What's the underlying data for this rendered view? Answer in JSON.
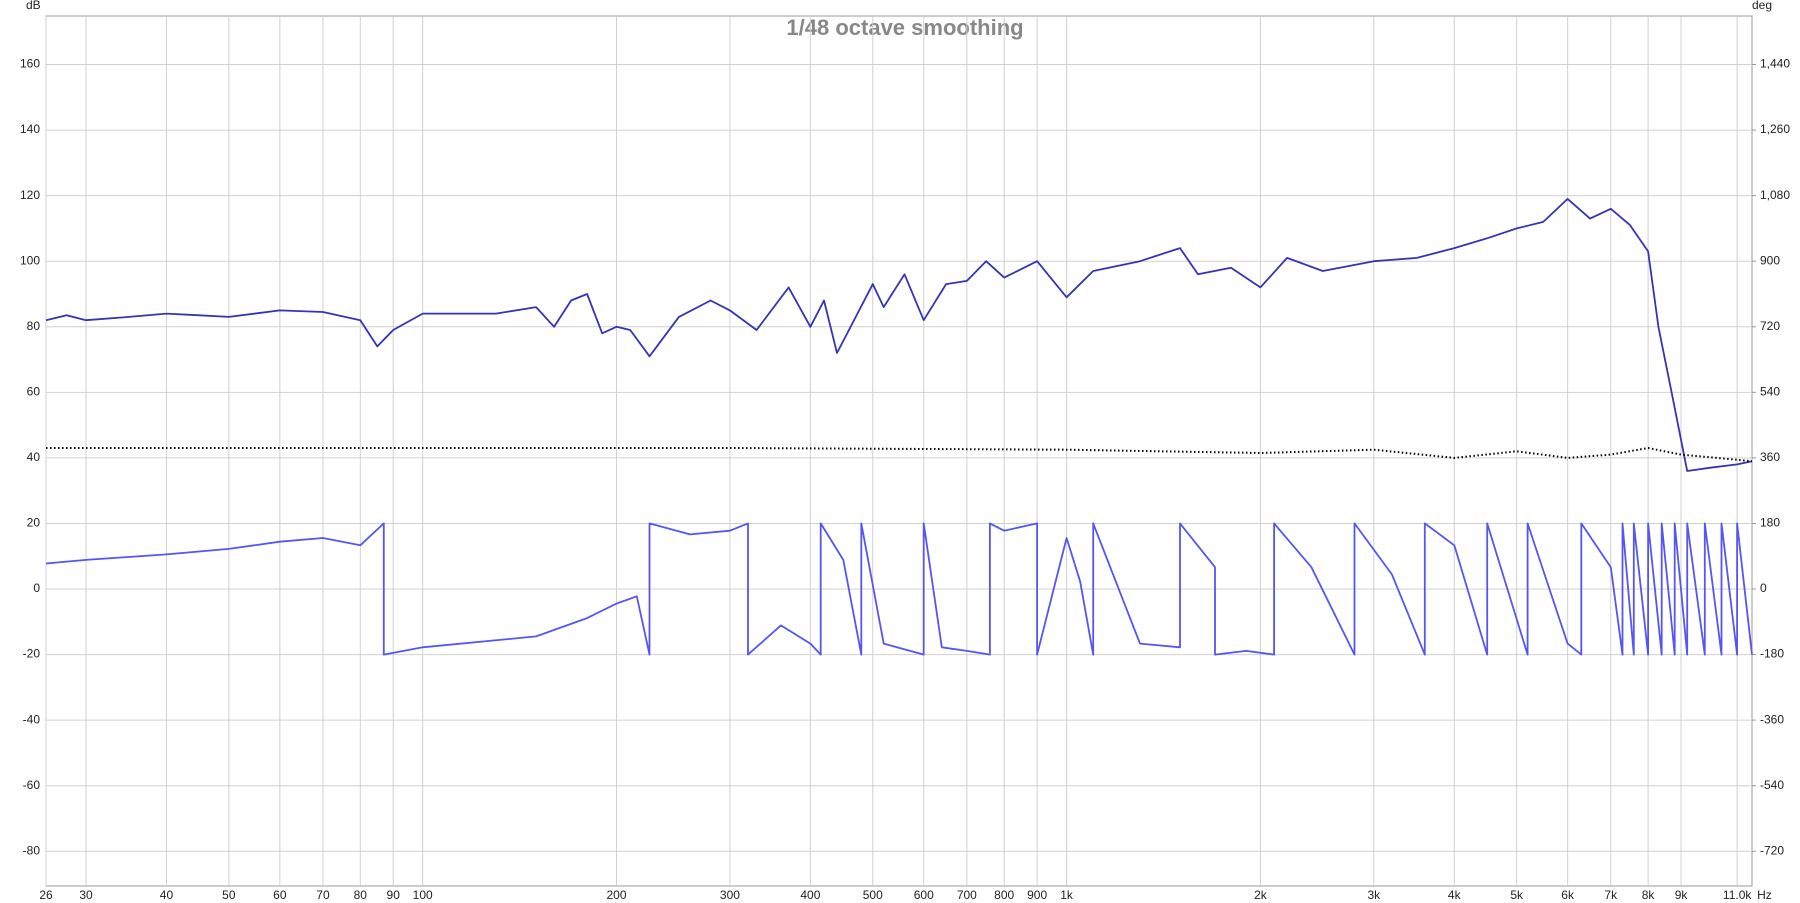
{
  "chart_data": {
    "type": "line",
    "title": "1/48 octave smoothing",
    "ylabel": "dB",
    "y2label": "deg",
    "xlabel": "Hz",
    "xscale": "log",
    "grid": true,
    "xlim": [
      26,
      11600
    ],
    "ylim": [
      -90.6,
      174.8
    ],
    "y2lim": [
      -815.4,
      1573.2
    ],
    "xticks": [
      26,
      30,
      40,
      50,
      60,
      70,
      80,
      90,
      100,
      200,
      300,
      400,
      500,
      600,
      700,
      800,
      900,
      {
        "value": 1000,
        "label": "1k"
      },
      {
        "value": 2000,
        "label": "2k"
      },
      {
        "value": 3000,
        "label": "3k"
      },
      {
        "value": 4000,
        "label": "4k"
      },
      {
        "value": 5000,
        "label": "5k"
      },
      {
        "value": 6000,
        "label": "6k"
      },
      {
        "value": 7000,
        "label": "7k"
      },
      {
        "value": 8000,
        "label": "8k"
      },
      {
        "value": 9000,
        "label": "9k"
      },
      {
        "value": 11000,
        "label": "11.0k"
      }
    ],
    "yticks": [
      -80,
      -60,
      -40,
      -20,
      0,
      20,
      40,
      60,
      80,
      100,
      120,
      140,
      160
    ],
    "y2ticks": [
      -720,
      -540,
      -360,
      -180,
      0,
      180,
      360,
      540,
      720,
      900,
      {
        "value": 1080,
        "label": "1,080"
      },
      {
        "value": 1260,
        "label": "1,260"
      },
      {
        "value": 1440,
        "label": "1,440"
      }
    ],
    "series": [
      {
        "color": "#3434b4",
        "style": "solid",
        "axis": "y",
        "x": [
          26,
          28,
          30,
          35,
          40,
          45,
          50,
          60,
          70,
          80,
          85,
          90,
          100,
          130,
          150,
          160,
          170,
          180,
          190,
          200,
          210,
          225,
          250,
          280,
          300,
          330,
          370,
          400,
          420,
          440,
          500,
          520,
          560,
          600,
          650,
          700,
          750,
          800,
          900,
          1000,
          1100,
          1300,
          1500,
          1600,
          1800,
          2000,
          2200,
          2500,
          3000,
          3500,
          4000,
          4500,
          5000,
          5500,
          6000,
          6500,
          7000,
          7500,
          8000,
          8300,
          8700,
          9200,
          10000,
          11000,
          11600
        ],
        "values": [
          82,
          83.5,
          82,
          83,
          84,
          83.5,
          83,
          85,
          84.5,
          82,
          74,
          79,
          84,
          84,
          86,
          80,
          88,
          90,
          78,
          80,
          79,
          71,
          83,
          88,
          85,
          79,
          92,
          80,
          88,
          72,
          93,
          86,
          96,
          82,
          93,
          94,
          100,
          95,
          100,
          89,
          97,
          100,
          104,
          96,
          98,
          92,
          101,
          97,
          100,
          101,
          104,
          107,
          110,
          112,
          119,
          113,
          116,
          111,
          103,
          80,
          60,
          36,
          37,
          38,
          39
        ]
      },
      {
        "color": "#000000",
        "style": "dotted",
        "axis": "y",
        "x": [
          26,
          100,
          300,
          1000,
          2000,
          3000,
          4000,
          5000,
          6000,
          7000,
          8000,
          9000,
          11600
        ],
        "values": [
          43,
          43,
          43,
          42.5,
          41.5,
          42.5,
          40,
          42,
          40,
          41,
          43,
          41,
          39
        ]
      },
      {
        "color": "#5555f5",
        "style": "solid",
        "axis": "y2",
        "x": [
          26,
          30,
          40,
          50,
          60,
          70,
          80,
          87,
          87,
          100,
          150,
          180,
          200,
          215,
          225,
          225,
          260,
          300,
          320,
          320,
          360,
          400,
          415,
          415,
          450,
          480,
          480,
          520,
          600,
          600,
          640,
          700,
          760,
          760,
          800,
          900,
          900,
          1000,
          1050,
          1100,
          1100,
          1300,
          1500,
          1500,
          1700,
          1700,
          1900,
          2100,
          2100,
          2400,
          2800,
          2800,
          3200,
          3600,
          3600,
          4000,
          4500,
          4500,
          5200,
          5200,
          6000,
          6300,
          6300,
          7000,
          7300,
          7300,
          7600,
          7600,
          8000,
          8000,
          8400,
          8400,
          8800,
          8800,
          9200,
          9200,
          9800,
          9800,
          10400,
          10400,
          11000,
          11000,
          11600
        ],
        "values": [
          70,
          80,
          95,
          110,
          130,
          140,
          120,
          180,
          -180,
          -160,
          -130,
          -80,
          -40,
          -20,
          -180,
          180,
          150,
          160,
          180,
          -180,
          -100,
          -150,
          -180,
          180,
          80,
          -180,
          180,
          -150,
          -180,
          180,
          -160,
          -170,
          -180,
          180,
          160,
          180,
          -180,
          140,
          20,
          -180,
          180,
          -150,
          -160,
          180,
          60,
          -180,
          -170,
          -180,
          180,
          60,
          -180,
          180,
          40,
          -180,
          180,
          120,
          -180,
          180,
          -180,
          180,
          -150,
          -180,
          180,
          60,
          -180,
          180,
          -180,
          180,
          -180,
          180,
          -180,
          180,
          -180,
          180,
          -180,
          180,
          -180,
          180,
          -180,
          180,
          -180,
          180,
          -180
        ]
      }
    ]
  }
}
